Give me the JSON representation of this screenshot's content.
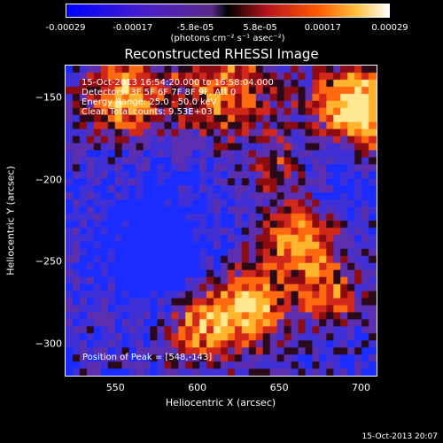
{
  "chart_data": {
    "type": "heatmap",
    "title": "Reconstructed RHESSI Image",
    "xlabel": "Heliocentric X (arcsec)",
    "ylabel": "Heliocentric Y (arcsec)",
    "xlim": [
      519,
      710
    ],
    "ylim": [
      -320,
      -130
    ],
    "x_ticks": [
      "550",
      "600",
      "650",
      "700"
    ],
    "y_ticks": [
      "-150",
      "-200",
      "-250",
      "-300"
    ],
    "x_tick_values": [
      550,
      600,
      650,
      700
    ],
    "y_tick_values": [
      -150,
      -200,
      -250,
      -300
    ],
    "colorbar": {
      "ticks": [
        "-0.00029",
        "-0.00017",
        "-5.8e-05",
        "5.8e-05",
        "0.00017",
        "0.00029"
      ],
      "tick_values": [
        -0.00029,
        -0.00017,
        -5.8e-05,
        5.8e-05,
        0.00017,
        0.00029
      ],
      "unit_label": "(photons cm⁻² s⁻¹ asec⁻²)",
      "range": [
        -0.00029,
        0.00029
      ]
    },
    "annotations": {
      "time_range": "15-Oct-2013 16:54:20.000 to 16:58:04.000",
      "detectors": "Detectors: 3F 5F 6F 7F 8F 9F, Att 0",
      "energy_range": "Energy Range: 25.0 - 50.0 keV",
      "method": "Clean    Total counts: 9.53E+03",
      "peak_position": "Position of Peak = [548,-143]"
    }
  },
  "footer": {
    "timestamp": "15-Oct-2013 20:07"
  }
}
